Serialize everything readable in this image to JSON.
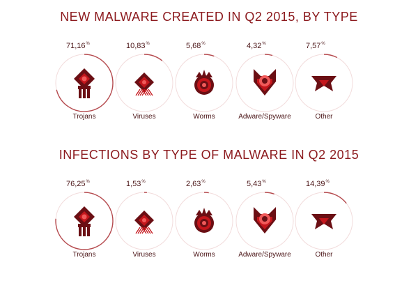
{
  "colors": {
    "title": "#8c1a1e",
    "ring_track": "#f2dcdc",
    "ring_arc": "#b54a4e",
    "icon_dark": "#6b0f14",
    "icon_mid": "#c4161c",
    "icon_light": "#f05a5a",
    "text": "#4a1416"
  },
  "chart_data": [
    {
      "type": "pie",
      "title": "NEW MALWARE CREATED IN Q2 2015, BY TYPE",
      "categories": [
        "Trojans",
        "Viruses",
        "Worms",
        "Adware/Spyware",
        "Other"
      ],
      "values": [
        71.16,
        10.83,
        5.68,
        4.32,
        7.57
      ],
      "value_labels": [
        "71,16",
        "10,83",
        "5,68",
        "4,32",
        "7,57"
      ],
      "unit": "%",
      "icons": [
        "trojan-icon",
        "virus-icon",
        "worm-icon",
        "adware-icon",
        "other-icon"
      ]
    },
    {
      "type": "pie",
      "title": "INFECTIONS BY TYPE OF MALWARE IN Q2 2015",
      "categories": [
        "Trojans",
        "Viruses",
        "Worms",
        "Adware/Spyware",
        "Other"
      ],
      "values": [
        76.25,
        1.53,
        2.63,
        5.43,
        14.39
      ],
      "value_labels": [
        "76,25",
        "1,53",
        "2,63",
        "5,43",
        "14,39"
      ],
      "unit": "%",
      "icons": [
        "trojan-icon",
        "virus-icon",
        "worm-icon",
        "adware-icon",
        "other-icon"
      ]
    }
  ]
}
